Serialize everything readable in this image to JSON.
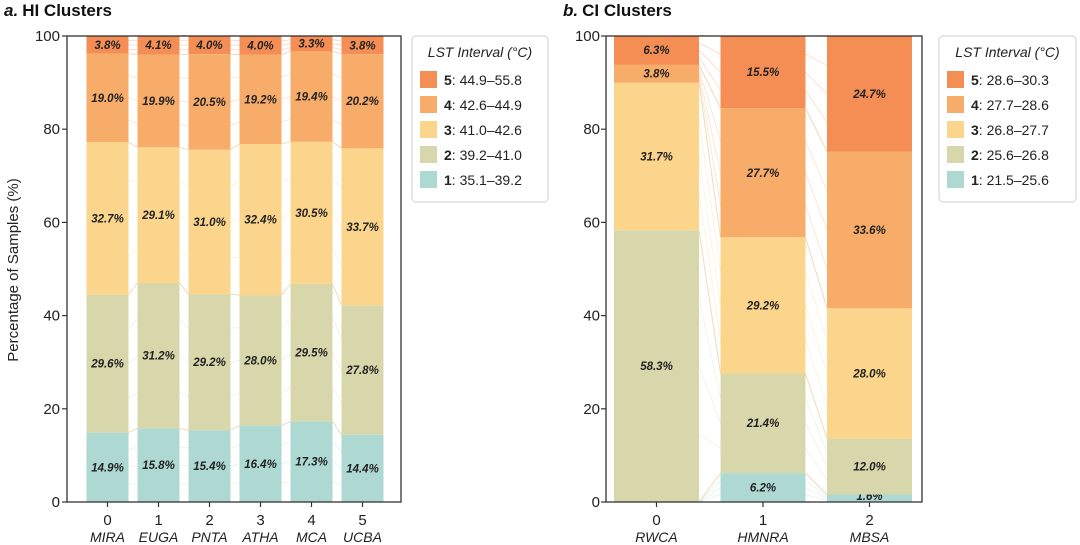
{
  "colors": {
    "1": "#aed9d2",
    "2": "#d8d7ab",
    "3": "#fbd58c",
    "4": "#f8ac6a",
    "5": "#f48e54",
    "axis": "#333333",
    "flow": "#f3e5cf"
  },
  "y_axis": {
    "label": "Percentage of Samples (%)",
    "ticks": [
      "0",
      "20",
      "40",
      "60",
      "80",
      "100"
    ]
  },
  "chart_data": [
    {
      "type": "bar",
      "stacked": true,
      "title_prefix": "a.",
      "title": "HI Clusters",
      "ylabel": "Percentage of Samples (%)",
      "ylim": [
        0,
        100
      ],
      "categories": [
        "0",
        "1",
        "2",
        "3",
        "4",
        "5"
      ],
      "category_names": [
        "MIRA",
        "EUGA",
        "PNTA",
        "ATHA",
        "MCA",
        "UCBA"
      ],
      "series": [
        {
          "key": "1",
          "name": "35.1–39.2",
          "values": [
            14.9,
            15.8,
            15.4,
            16.4,
            17.3,
            14.4
          ],
          "labels": [
            "14.9%",
            "15.8%",
            "15.4%",
            "16.4%",
            "17.3%",
            "14.4%"
          ]
        },
        {
          "key": "2",
          "name": "39.2–41.0",
          "values": [
            29.6,
            31.2,
            29.2,
            28.0,
            29.5,
            27.8
          ],
          "labels": [
            "29.6%",
            "31.2%",
            "29.2%",
            "28.0%",
            "29.5%",
            "27.8%"
          ]
        },
        {
          "key": "3",
          "name": "41.0–42.6",
          "values": [
            32.7,
            29.1,
            31.0,
            32.4,
            30.5,
            33.7
          ],
          "labels": [
            "32.7%",
            "29.1%",
            "31.0%",
            "32.4%",
            "30.5%",
            "33.7%"
          ]
        },
        {
          "key": "4",
          "name": "42.6–44.9",
          "values": [
            19.0,
            19.9,
            20.5,
            19.2,
            19.4,
            20.2
          ],
          "labels": [
            "19.0%",
            "19.9%",
            "20.5%",
            "19.2%",
            "19.4%",
            "20.2%"
          ]
        },
        {
          "key": "5",
          "name": "44.9–55.8",
          "values": [
            3.8,
            4.1,
            4.0,
            4.0,
            3.3,
            3.8
          ],
          "labels": [
            "3.8%",
            "4.1%",
            "4.0%",
            "4.0%",
            "3.3%",
            "3.8%"
          ]
        }
      ],
      "legend": {
        "title": "LST Interval (°C)",
        "entries": [
          {
            "key": "5",
            "range": ": 44.9–55.8"
          },
          {
            "key": "4",
            "range": ": 42.6–44.9"
          },
          {
            "key": "3",
            "range": ": 41.0–42.6"
          },
          {
            "key": "2",
            "range": ": 39.2–41.0"
          },
          {
            "key": "1",
            "range": ": 35.1–39.2"
          }
        ],
        "placement": "right"
      }
    },
    {
      "type": "bar",
      "stacked": true,
      "title_prefix": "b.",
      "title": "CI Clusters",
      "ylim": [
        0,
        100
      ],
      "categories": [
        "0",
        "1",
        "2"
      ],
      "category_names": [
        "RWCA",
        "HMNRA",
        "MBSA"
      ],
      "series": [
        {
          "key": "1",
          "name": "21.5–25.6",
          "values": [
            0.0,
            6.2,
            1.6
          ],
          "labels": [
            "",
            "6.2%",
            "1.6%"
          ]
        },
        {
          "key": "2",
          "name": "25.6–26.8",
          "values": [
            58.3,
            21.4,
            12.0
          ],
          "labels": [
            "58.3%",
            "21.4%",
            "12.0%"
          ]
        },
        {
          "key": "3",
          "name": "26.8–27.7",
          "values": [
            31.7,
            29.2,
            28.0
          ],
          "labels": [
            "31.7%",
            "29.2%",
            "28.0%"
          ]
        },
        {
          "key": "4",
          "name": "27.7–28.6",
          "values": [
            3.8,
            27.7,
            33.6
          ],
          "labels": [
            "3.8%",
            "27.7%",
            "33.6%"
          ]
        },
        {
          "key": "5",
          "name": "28.6–30.3",
          "values": [
            6.3,
            15.5,
            24.7
          ],
          "labels": [
            "6.3%",
            "15.5%",
            "24.7%"
          ]
        }
      ],
      "legend": {
        "title": "LST Interval (°C)",
        "entries": [
          {
            "key": "5",
            "range": ": 28.6–30.3"
          },
          {
            "key": "4",
            "range": ": 27.7–28.6"
          },
          {
            "key": "3",
            "range": ": 26.8–27.7"
          },
          {
            "key": "2",
            "range": ": 25.6–26.8"
          },
          {
            "key": "1",
            "range": ": 21.5–25.6"
          }
        ],
        "placement": "right"
      }
    }
  ]
}
